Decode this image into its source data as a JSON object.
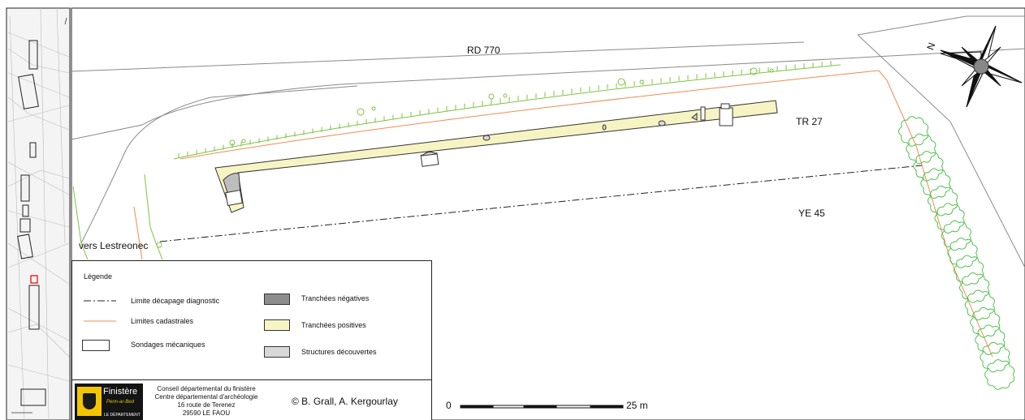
{
  "labels": {
    "road": "RD 770",
    "parcel_tr": "TR 27",
    "parcel_ye": "YE 45",
    "direction": "vers Lestreonec"
  },
  "north": {
    "letter": "N"
  },
  "legend": {
    "title": "Légende",
    "items": [
      "Limite décapage diagnostic",
      "Limites cadastrales",
      "Sondages mécaniques",
      "Tranchées négatives",
      "Tranchées positives",
      "Structures découvertes"
    ]
  },
  "credits": {
    "logo_brand": "Finistère",
    "logo_sub": "Penn-ar-Bed",
    "logo_sub2": "LE DÉPARTEMENT",
    "address_lines": [
      "Conseil départemental du finistère",
      "Centre départemental d'archéologie",
      "16 route de Terenez",
      "29590 LE FAOU"
    ],
    "copyright": "© B. Grall, A. Kergourlay"
  },
  "scale": {
    "start": "0",
    "end": "25 m"
  },
  "colors": {
    "trench_positive": "#f7f4c4",
    "trench_negative": "#8c8c8c",
    "structure": "#d8d8d8",
    "cadastral": "#f08c50",
    "vegetation": "#7dc241",
    "trees": "#4ec24e"
  }
}
